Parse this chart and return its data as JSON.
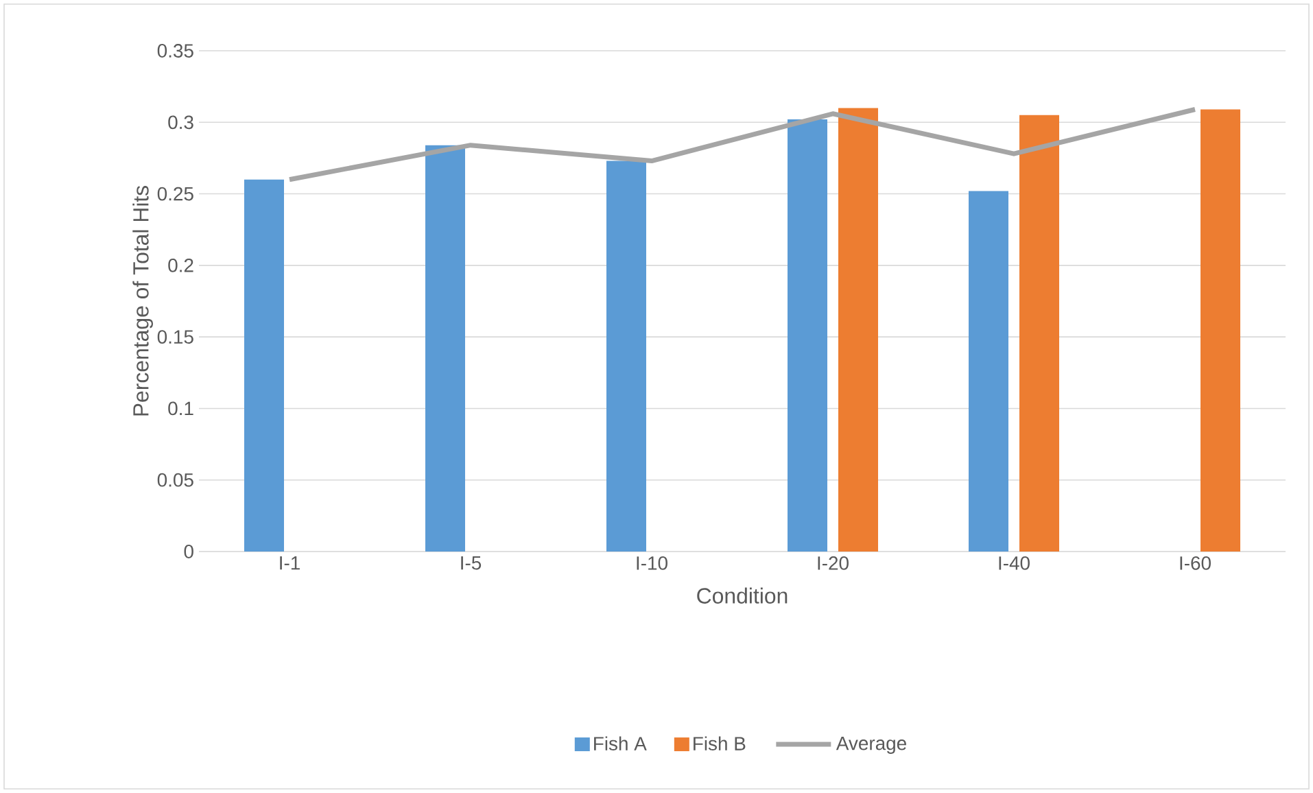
{
  "chart_data": {
    "type": "bar",
    "xlabel": "Condition",
    "ylabel": "Percentage of Total Hits",
    "categories": [
      "I-1",
      "I-5",
      "I-10",
      "I-20",
      "I-40",
      "I-60"
    ],
    "series": [
      {
        "name": "Fish A",
        "color": "#5b9bd5",
        "values": [
          0.26,
          0.284,
          0.273,
          0.302,
          0.252,
          null
        ]
      },
      {
        "name": "Fish B",
        "color": "#ed7d31",
        "values": [
          null,
          null,
          null,
          0.31,
          0.305,
          0.309
        ]
      },
      {
        "name": "Average",
        "type": "line",
        "color": "#a5a5a5",
        "values": [
          0.26,
          0.284,
          0.273,
          0.306,
          0.278,
          0.309
        ]
      }
    ],
    "ylim": [
      0,
      0.35
    ],
    "yticks": [
      0,
      0.05,
      0.1,
      0.15,
      0.2,
      0.25,
      0.3,
      0.35
    ],
    "grid": "y",
    "legend": "bottom"
  }
}
